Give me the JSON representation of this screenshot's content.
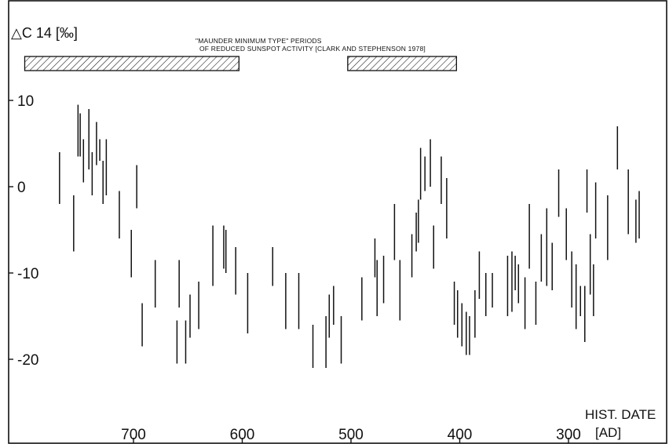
{
  "chart_data": {
    "type": "scatter",
    "subtype": "vertical-error-bars",
    "ylabel": "△C 14 [‰]",
    "xlabel_line1": "HIST. DATE",
    "xlabel_line2": "[AD]",
    "x_reversed": true,
    "xlim": [
      790,
      200
    ],
    "ylim": [
      -29,
      14
    ],
    "x_ticks": [
      700,
      600,
      500,
      400,
      300
    ],
    "x_tick_labels": [
      "700",
      "600",
      "500",
      "400",
      "300"
    ],
    "y_ticks": [
      10,
      0,
      -10,
      -20
    ],
    "y_tick_labels": [
      "10",
      "0",
      "-10",
      "-20"
    ],
    "grid": false,
    "annotation_line1": "\"MAUNDER MINIMUM TYPE\" PERIODS",
    "annotation_line2": "OF REDUCED SUNSPOT ACTIVITY [CLARK AND STEPHENSON 1978]",
    "shaded_periods": [
      {
        "start": 800,
        "end": 603
      },
      {
        "start": 503,
        "end": 403
      }
    ],
    "error_bars": [
      {
        "x": 768,
        "low": -2,
        "high": 4
      },
      {
        "x": 755,
        "low": -7.5,
        "high": -1
      },
      {
        "x": 751,
        "low": 3.5,
        "high": 9.5
      },
      {
        "x": 749,
        "low": 3.5,
        "high": 8.5
      },
      {
        "x": 746,
        "low": 0.5,
        "high": 5.5
      },
      {
        "x": 741,
        "low": 2,
        "high": 9
      },
      {
        "x": 738,
        "low": -1,
        "high": 4
      },
      {
        "x": 734,
        "low": 2.5,
        "high": 7.5
      },
      {
        "x": 731,
        "low": 3,
        "high": 5.5
      },
      {
        "x": 728,
        "low": -2,
        "high": 3
      },
      {
        "x": 725,
        "low": -1,
        "high": 5.5
      },
      {
        "x": 713,
        "low": -6,
        "high": -0.5
      },
      {
        "x": 702,
        "low": -10.5,
        "high": -5
      },
      {
        "x": 697,
        "low": -2.5,
        "high": 2.5
      },
      {
        "x": 692,
        "low": -18.5,
        "high": -13.5
      },
      {
        "x": 680,
        "low": -14,
        "high": -8.5
      },
      {
        "x": 660,
        "low": -20.5,
        "high": -15.5
      },
      {
        "x": 658,
        "low": -14,
        "high": -8.5
      },
      {
        "x": 652,
        "low": -20.5,
        "high": -15.5
      },
      {
        "x": 648,
        "low": -17.5,
        "high": -12.5
      },
      {
        "x": 640,
        "low": -16.5,
        "high": -11
      },
      {
        "x": 627,
        "low": -11.5,
        "high": -4.5
      },
      {
        "x": 617,
        "low": -9.5,
        "high": -4.5
      },
      {
        "x": 615,
        "low": -10,
        "high": -5
      },
      {
        "x": 606,
        "low": -12.5,
        "high": -7
      },
      {
        "x": 595,
        "low": -17,
        "high": -10
      },
      {
        "x": 572,
        "low": -11.5,
        "high": -7
      },
      {
        "x": 560,
        "low": -16.5,
        "high": -10
      },
      {
        "x": 548,
        "low": -16.5,
        "high": -10
      },
      {
        "x": 535,
        "low": -21,
        "high": -16
      },
      {
        "x": 523,
        "low": -21,
        "high": -15
      },
      {
        "x": 520,
        "low": -17.5,
        "high": -12.5
      },
      {
        "x": 516,
        "low": -16,
        "high": -11.5
      },
      {
        "x": 509,
        "low": -20.5,
        "high": -15
      },
      {
        "x": 490,
        "low": -15.5,
        "high": -10.5
      },
      {
        "x": 478,
        "low": -10.5,
        "high": -6
      },
      {
        "x": 476,
        "low": -15,
        "high": -8.5
      },
      {
        "x": 470,
        "low": -13.5,
        "high": -8
      },
      {
        "x": 460,
        "low": -8.5,
        "high": -2
      },
      {
        "x": 455,
        "low": -15.5,
        "high": -8.5
      },
      {
        "x": 444,
        "low": -10.5,
        "high": -5.5
      },
      {
        "x": 440,
        "low": -7.5,
        "high": -3
      },
      {
        "x": 438,
        "low": -6.5,
        "high": -1.5
      },
      {
        "x": 436,
        "low": -1.5,
        "high": 4.5
      },
      {
        "x": 432,
        "low": -0.5,
        "high": 3.5
      },
      {
        "x": 427,
        "low": 0,
        "high": 5.5
      },
      {
        "x": 424,
        "low": -9.5,
        "high": -4.5
      },
      {
        "x": 417,
        "low": -2,
        "high": 3.5
      },
      {
        "x": 412,
        "low": -6,
        "high": 1
      },
      {
        "x": 405,
        "low": -16,
        "high": -11
      },
      {
        "x": 402,
        "low": -17.5,
        "high": -12
      },
      {
        "x": 398,
        "low": -18.5,
        "high": -13.5
      },
      {
        "x": 394,
        "low": -19.5,
        "high": -14.5
      },
      {
        "x": 391,
        "low": -19.5,
        "high": -15
      },
      {
        "x": 386,
        "low": -17.5,
        "high": -12
      },
      {
        "x": 382,
        "low": -13,
        "high": -7.5
      },
      {
        "x": 376,
        "low": -15,
        "high": -10
      },
      {
        "x": 370,
        "low": -14,
        "high": -10
      },
      {
        "x": 356,
        "low": -15,
        "high": -8
      },
      {
        "x": 352,
        "low": -14.5,
        "high": -7.5
      },
      {
        "x": 349,
        "low": -12,
        "high": -8
      },
      {
        "x": 346,
        "low": -13.5,
        "high": -9
      },
      {
        "x": 340,
        "low": -16.5,
        "high": -10.5
      },
      {
        "x": 336,
        "low": -9.5,
        "high": -2
      },
      {
        "x": 330,
        "low": -16,
        "high": -11
      },
      {
        "x": 325,
        "low": -11,
        "high": -5.5
      },
      {
        "x": 320,
        "low": -11.5,
        "high": -2.5
      },
      {
        "x": 315,
        "low": -12,
        "high": -6.5
      },
      {
        "x": 309,
        "low": -3.5,
        "high": 2
      },
      {
        "x": 302,
        "low": -8.5,
        "high": -2.5
      },
      {
        "x": 297,
        "low": -14,
        "high": -7.5
      },
      {
        "x": 293,
        "low": -16.5,
        "high": -9
      },
      {
        "x": 289,
        "low": -15,
        "high": -11.5
      },
      {
        "x": 285,
        "low": -18,
        "high": -11.5
      },
      {
        "x": 283,
        "low": -3,
        "high": 2
      },
      {
        "x": 280,
        "low": -12.5,
        "high": -5.5
      },
      {
        "x": 277,
        "low": -15,
        "high": -9
      },
      {
        "x": 275,
        "low": -6,
        "high": 0.5
      },
      {
        "x": 264,
        "low": -8.5,
        "high": -1
      },
      {
        "x": 255,
        "low": 2,
        "high": 7
      },
      {
        "x": 245,
        "low": -5.5,
        "high": 2
      },
      {
        "x": 238,
        "low": -6.5,
        "high": -1.5
      },
      {
        "x": 235,
        "low": -6,
        "high": -0.5
      }
    ]
  }
}
